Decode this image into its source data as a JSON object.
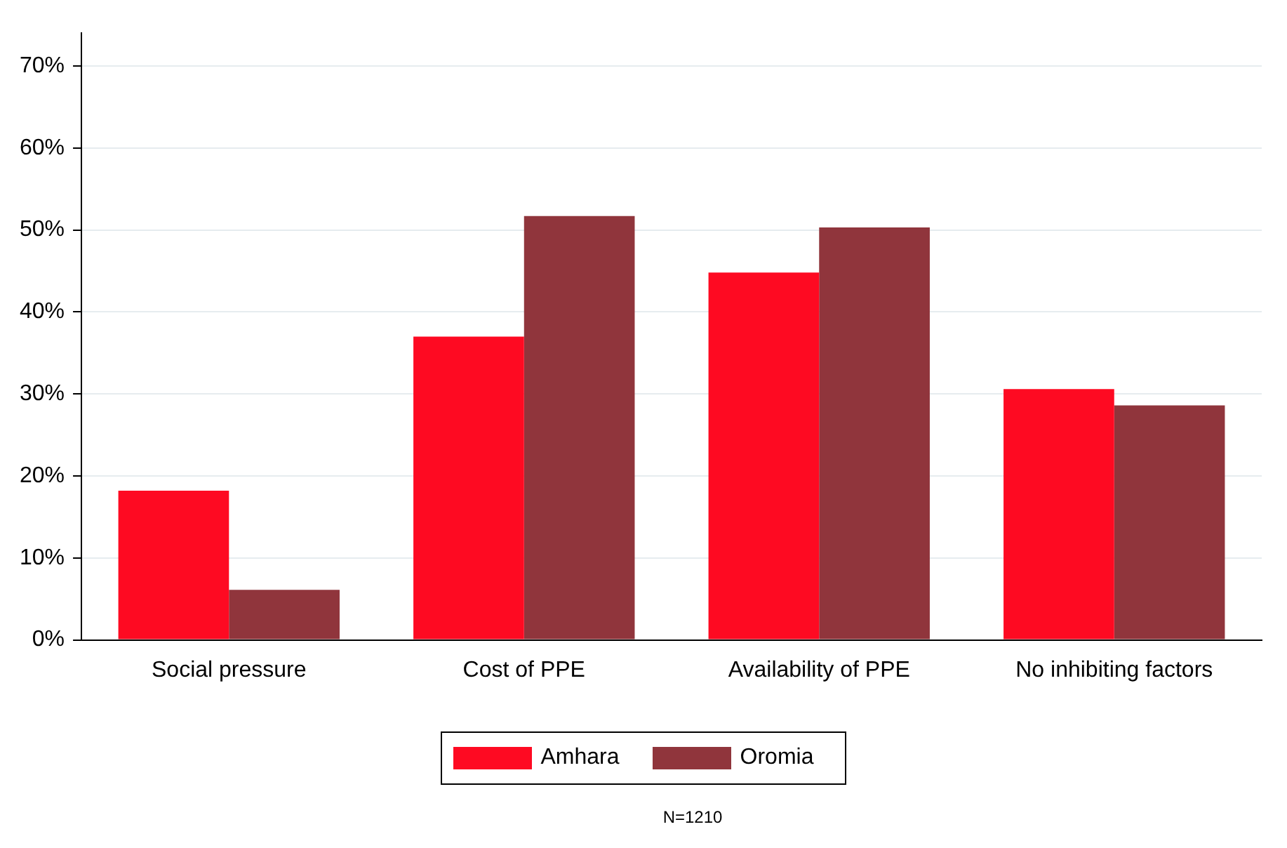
{
  "chart_data": {
    "type": "bar",
    "categories": [
      "Social pressure",
      "Cost of PPE",
      "Availability of PPE",
      "No inhibiting factors"
    ],
    "series": [
      {
        "name": "Amhara",
        "color": "#fe0a22",
        "values": [
          18.2,
          37.0,
          44.8,
          30.6
        ]
      },
      {
        "name": "Oromia",
        "color": "#90353c",
        "values": [
          6.1,
          51.7,
          50.3,
          28.6
        ]
      }
    ],
    "ylim": [
      0,
      74
    ],
    "yticks": [
      {
        "value": 0,
        "label": "0%"
      },
      {
        "value": 10,
        "label": "10%"
      },
      {
        "value": 20,
        "label": "20%"
      },
      {
        "value": 30,
        "label": "30%"
      },
      {
        "value": 40,
        "label": "40%"
      },
      {
        "value": 50,
        "label": "50%"
      },
      {
        "value": 60,
        "label": "60%"
      },
      {
        "value": 70,
        "label": "70%"
      }
    ],
    "grid": "y",
    "legend": "bottom",
    "annotations": [
      "N=1210"
    ]
  }
}
